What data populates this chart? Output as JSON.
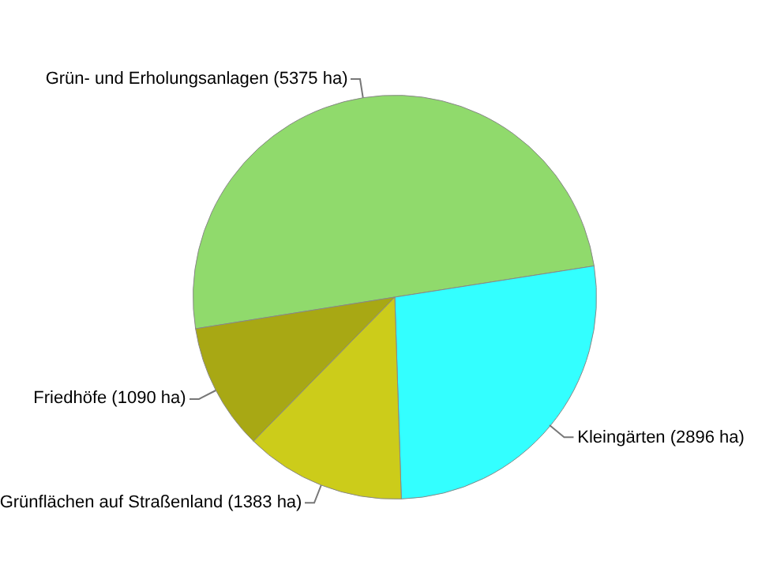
{
  "chart_data": {
    "type": "pie",
    "categories": [
      "Grün- und Erholungsanlagen (5375 ha)",
      "Kleingärten (2896 ha)",
      "Grünflächen auf Straßenland (1383 ha)",
      "Friedhöfe (1090 ha)"
    ],
    "values": [
      5375,
      2896,
      1383,
      1090
    ],
    "colors": [
      "#90da6c",
      "#33ffff",
      "#cccc1a",
      "#a8a814"
    ],
    "legend": false
  }
}
